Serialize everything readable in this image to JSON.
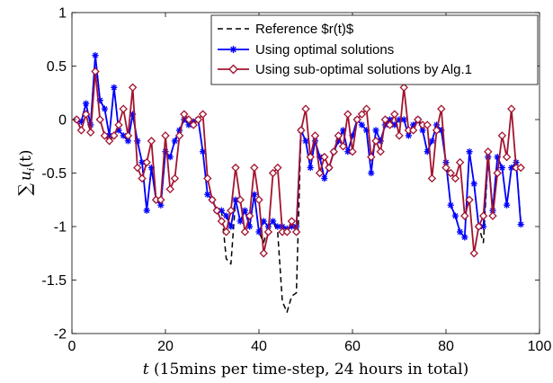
{
  "chart_data": {
    "type": "line",
    "xlabel": "t (15mins per time-step, 24 hours in total)",
    "xlabel_italic": "t",
    "xlabel_rest": " (15mins per time-step, 24 hours in total)",
    "ylabel": "∑ u_i(t)",
    "ylabel_sigma": "∑",
    "ylabel_u": "u",
    "ylabel_sub": "i",
    "ylabel_args": "(t)",
    "xlim": [
      0,
      100
    ],
    "ylim": [
      -2,
      1
    ],
    "xticks": [
      0,
      20,
      40,
      60,
      80,
      100
    ],
    "yticks": [
      -2,
      -1.5,
      -1,
      -0.5,
      0,
      0.5,
      1
    ],
    "ytick_labels": [
      "-2",
      "-1.5",
      "-1",
      "-0.5",
      "0",
      "0.5",
      "1"
    ],
    "xtick_labels": [
      "0",
      "20",
      "40",
      "60",
      "80",
      "100"
    ],
    "legend_placement": "top-right",
    "grid": false,
    "series": [
      {
        "name": "Reference $r(t)$",
        "color": "#000000",
        "style": "dashed",
        "marker": "none",
        "x": [
          1,
          2,
          3,
          4,
          5,
          6,
          7,
          8,
          9,
          10,
          11,
          12,
          13,
          14,
          15,
          16,
          17,
          18,
          19,
          20,
          21,
          22,
          23,
          24,
          25,
          26,
          27,
          28,
          29,
          30,
          31,
          32,
          33,
          34,
          35,
          36,
          37,
          38,
          39,
          40,
          41,
          42,
          43,
          44,
          45,
          46,
          47,
          48,
          49,
          50,
          51,
          52,
          53,
          54,
          55,
          56,
          57,
          58,
          59,
          60,
          61,
          62,
          63,
          64,
          65,
          66,
          67,
          68,
          69,
          70,
          71,
          72,
          73,
          74,
          75,
          76,
          77,
          78,
          79,
          80,
          81,
          82,
          83,
          84,
          85,
          86,
          87,
          88,
          89,
          90,
          91,
          92,
          93,
          94,
          95,
          96
        ],
        "y": [
          0.0,
          -0.02,
          0.15,
          -0.05,
          0.6,
          0.18,
          0.1,
          -0.15,
          0.3,
          -0.1,
          -0.15,
          -0.2,
          0.05,
          -0.2,
          -0.4,
          -0.85,
          -0.45,
          -0.75,
          -0.8,
          -0.3,
          -0.35,
          -0.2,
          -0.1,
          0.0,
          -0.05,
          -0.02,
          0.0,
          -0.3,
          -0.7,
          -0.75,
          -0.85,
          -0.85,
          -1.3,
          -1.35,
          -0.75,
          -0.95,
          -0.85,
          -1.0,
          -0.7,
          -1.05,
          -1.15,
          -1.0,
          -0.95,
          -1.05,
          -1.7,
          -1.8,
          -1.65,
          -1.62,
          -0.1,
          -0.2,
          -0.45,
          -0.2,
          -0.35,
          -0.55,
          -0.45,
          -0.3,
          -0.2,
          -0.1,
          -0.3,
          -0.15,
          0.0,
          -0.05,
          -0.1,
          -0.5,
          -0.1,
          -0.2,
          -0.05,
          0.0,
          -0.05,
          0.0,
          0.0,
          -0.15,
          -0.05,
          0.0,
          -0.1,
          -0.3,
          -0.2,
          -0.05,
          -0.1,
          -0.4,
          -0.8,
          -0.9,
          -1.05,
          -1.1,
          -0.3,
          -0.6,
          -1.0,
          -1.15,
          -0.35,
          -0.85,
          -0.35,
          -0.45,
          -0.8,
          -0.45,
          -0.4,
          -0.95
        ]
      },
      {
        "name": "Using optimal solutions",
        "color": "#0000ff",
        "style": "solid",
        "marker": "asterisk",
        "x": [
          1,
          2,
          3,
          4,
          5,
          6,
          7,
          8,
          9,
          10,
          11,
          12,
          13,
          14,
          15,
          16,
          17,
          18,
          19,
          20,
          21,
          22,
          23,
          24,
          25,
          26,
          27,
          28,
          29,
          30,
          31,
          32,
          33,
          34,
          35,
          36,
          37,
          38,
          39,
          40,
          41,
          42,
          43,
          44,
          45,
          46,
          47,
          48,
          49,
          50,
          51,
          52,
          53,
          54,
          55,
          56,
          57,
          58,
          59,
          60,
          61,
          62,
          63,
          64,
          65,
          66,
          67,
          68,
          69,
          70,
          71,
          72,
          73,
          74,
          75,
          76,
          77,
          78,
          79,
          80,
          81,
          82,
          83,
          84,
          85,
          86,
          87,
          88,
          89,
          90,
          91,
          92,
          93,
          94,
          95,
          96
        ],
        "y": [
          0.0,
          -0.02,
          0.15,
          -0.05,
          0.6,
          0.18,
          0.1,
          -0.15,
          0.3,
          -0.1,
          -0.15,
          -0.2,
          0.05,
          -0.2,
          -0.4,
          -0.85,
          -0.45,
          -0.75,
          -0.8,
          -0.3,
          -0.35,
          -0.2,
          -0.1,
          0.0,
          -0.05,
          -0.02,
          0.0,
          -0.3,
          -0.7,
          -0.75,
          -0.85,
          -0.85,
          -0.9,
          -1.0,
          -0.75,
          -0.95,
          -0.85,
          -1.0,
          -0.7,
          -1.05,
          -0.95,
          -1.0,
          -0.95,
          -1.0,
          -1.0,
          -1.02,
          -1.0,
          -1.0,
          -0.1,
          -0.2,
          -0.45,
          -0.2,
          -0.35,
          -0.55,
          -0.45,
          -0.3,
          -0.2,
          -0.1,
          -0.3,
          -0.15,
          0.0,
          -0.05,
          -0.1,
          -0.5,
          -0.1,
          -0.2,
          -0.05,
          0.0,
          -0.05,
          0.0,
          0.0,
          -0.15,
          -0.05,
          0.0,
          -0.1,
          -0.3,
          -0.2,
          -0.05,
          -0.1,
          -0.4,
          -0.8,
          -0.9,
          -1.05,
          -1.1,
          -0.3,
          -0.6,
          -1.0,
          -1.0,
          -0.35,
          -0.85,
          -0.35,
          -0.45,
          -0.8,
          -0.45,
          -0.4,
          -0.98
        ]
      },
      {
        "name": "Using sub-optimal solutions by Alg.1",
        "color": "#a2142f",
        "style": "solid",
        "marker": "diamond",
        "x": [
          1,
          2,
          3,
          4,
          5,
          6,
          7,
          8,
          9,
          10,
          11,
          12,
          13,
          14,
          15,
          16,
          17,
          18,
          19,
          20,
          21,
          22,
          23,
          24,
          25,
          26,
          27,
          28,
          29,
          30,
          31,
          32,
          33,
          34,
          35,
          36,
          37,
          38,
          39,
          40,
          41,
          42,
          43,
          44,
          45,
          46,
          47,
          48,
          49,
          50,
          51,
          52,
          53,
          54,
          55,
          56,
          57,
          58,
          59,
          60,
          61,
          62,
          63,
          64,
          65,
          66,
          67,
          68,
          69,
          70,
          71,
          72,
          73,
          74,
          75,
          76,
          77,
          78,
          79,
          80,
          81,
          82,
          83,
          84,
          85,
          86,
          87,
          88,
          89,
          90,
          91,
          92,
          93,
          94,
          95,
          96
        ],
        "y": [
          0.0,
          -0.1,
          0.05,
          -0.12,
          0.45,
          0.0,
          -0.15,
          -0.2,
          -0.15,
          -0.05,
          0.1,
          -0.15,
          0.3,
          -0.45,
          -0.55,
          -0.4,
          -0.2,
          -0.75,
          -0.75,
          -0.15,
          -0.65,
          -0.55,
          -0.15,
          0.05,
          0.0,
          -0.05,
          0.0,
          0.05,
          -0.55,
          -0.75,
          -0.85,
          -0.95,
          -1.05,
          -0.85,
          -0.45,
          -0.75,
          -1.05,
          -0.9,
          -0.45,
          -0.75,
          -1.25,
          -1.05,
          -0.5,
          -0.45,
          -1.05,
          -1.05,
          -0.95,
          -1.05,
          -0.1,
          0.1,
          -0.35,
          -0.15,
          -0.5,
          -0.35,
          -0.45,
          -0.3,
          -0.15,
          -0.25,
          0.05,
          -0.3,
          0.0,
          0.05,
          0.1,
          -0.35,
          -0.2,
          -0.3,
          0.0,
          -0.05,
          0.05,
          -0.15,
          0.3,
          -0.1,
          -0.1,
          0.0,
          -0.05,
          -0.05,
          -0.55,
          -0.1,
          0.1,
          -0.45,
          -0.5,
          -0.55,
          -0.4,
          -0.9,
          -0.75,
          -1.25,
          -1.0,
          -0.9,
          -0.3,
          -0.9,
          -0.5,
          -0.15,
          -0.35,
          0.1,
          -0.45,
          -0.45
        ]
      }
    ]
  }
}
